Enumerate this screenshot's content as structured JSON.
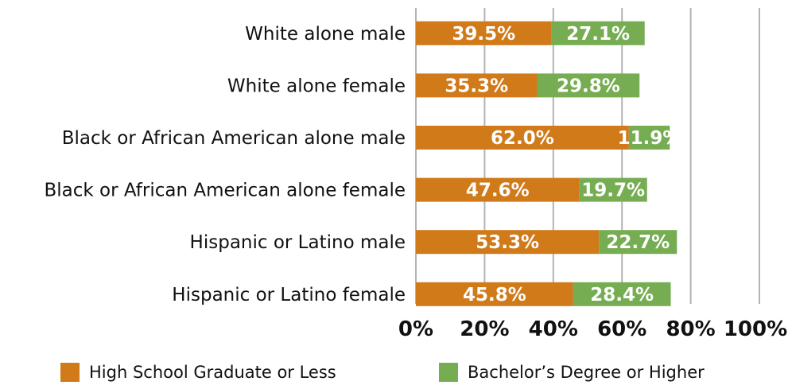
{
  "chart_data": {
    "type": "bar",
    "orientation": "horizontal",
    "stacked": true,
    "categories": [
      "White alone male",
      "White alone female",
      "Black or African American alone male",
      "Black or African American alone female",
      "Hispanic or Latino male",
      "Hispanic or Latino female"
    ],
    "series": [
      {
        "name": "High School Graduate or Less",
        "color": "#D07A1A",
        "values": [
          39.5,
          35.3,
          62.0,
          47.6,
          53.3,
          45.8
        ],
        "labels": [
          "39.5%",
          "35.3%",
          "62.0%",
          "47.6%",
          "53.3%",
          "45.8%"
        ]
      },
      {
        "name": "Bachelor’s Degree or Higher",
        "color": "#76AD52",
        "values": [
          27.1,
          29.8,
          11.9,
          19.7,
          22.7,
          28.4
        ],
        "labels": [
          "27.1%",
          "29.8%",
          "11.9%",
          "19.7%",
          "22.7%",
          "28.4%"
        ]
      }
    ],
    "xlim": [
      0,
      100
    ],
    "x_ticks": [
      "0%",
      "20%",
      "40%",
      "60%",
      "80%",
      "100%"
    ],
    "grid": true,
    "legend_position": "bottom"
  }
}
